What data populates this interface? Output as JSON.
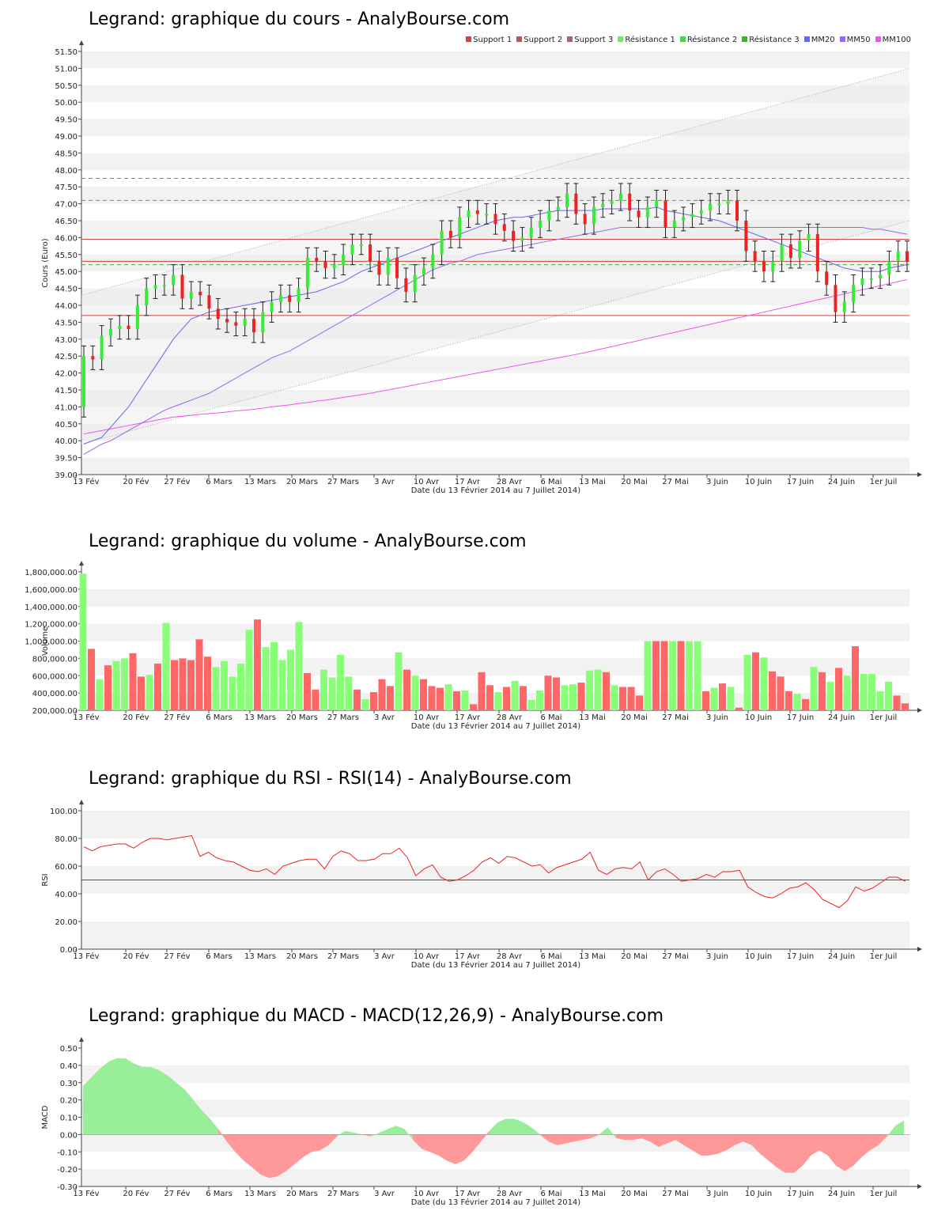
{
  "x_ticks": [
    "13 Fév",
    "20 Fév",
    "27 Fév",
    "6 Mars",
    "13 Mars",
    "20 Mars",
    "27 Mars",
    "3 Avr",
    "10 Avr",
    "17 Avr",
    "28 Avr",
    "6 Mai",
    "13 Mai",
    "20 Mai",
    "27 Mai",
    "3 Juin",
    "10 Juin",
    "17 Juin",
    "24 Juin",
    "1er Juil"
  ],
  "xlabel": "Date (du 13 Février 2014 au 7 Juillet 2014)",
  "colors": {
    "up": "#33ee33",
    "down": "#ee2222",
    "vol_up": "#88ff77",
    "vol_down": "#ff6666",
    "mm20": "#6666ee",
    "mm50": "#9966ee",
    "mm100": "#ee55ee",
    "support": "#cc4444",
    "resistance": "#44aa44",
    "grid_band": "#f2f2f2",
    "macd_pos": "#99ee99",
    "macd_neg": "#ff9999"
  },
  "chart_data": [
    {
      "type": "candlestick",
      "title": "Legrand: graphique du cours - AnalyBourse.com",
      "ylabel": "Cours (Euro)",
      "ylim": [
        39.0,
        51.5
      ],
      "y_ticks": [
        "39.00",
        "39.50",
        "40.00",
        "40.50",
        "41.00",
        "41.50",
        "42.00",
        "42.50",
        "43.00",
        "43.50",
        "44.00",
        "44.50",
        "45.00",
        "45.50",
        "46.00",
        "46.50",
        "47.00",
        "47.50",
        "48.00",
        "48.50",
        "49.00",
        "49.50",
        "50.00",
        "50.50",
        "51.00",
        "51.50"
      ],
      "legend": [
        "Support 1",
        "Support 2",
        "Support 3",
        "Résistance 1",
        "Résistance 2",
        "Résistance 3",
        "MM20",
        "MM50",
        "MM100"
      ],
      "support_levels": [
        43.7,
        45.95,
        45.3
      ],
      "resistance_levels": [
        47.75,
        47.1,
        45.2
      ],
      "closes": [
        42.5,
        42.4,
        43.1,
        43.3,
        43.4,
        43.3,
        44.0,
        44.5,
        44.6,
        44.6,
        44.9,
        44.2,
        44.4,
        44.3,
        43.9,
        43.6,
        43.5,
        43.4,
        43.6,
        43.2,
        43.8,
        44.1,
        44.3,
        44.1,
        44.5,
        45.4,
        45.3,
        45.1,
        45.2,
        45.5,
        45.8,
        45.8,
        45.3,
        44.9,
        45.4,
        44.8,
        44.4,
        44.9,
        45.1,
        45.5,
        46.2,
        46.0,
        46.6,
        46.8,
        46.7,
        46.7,
        46.4,
        46.2,
        45.9,
        46.0,
        46.3,
        46.5,
        46.8,
        46.9,
        47.3,
        46.7,
        46.4,
        46.9,
        47.0,
        47.1,
        47.3,
        46.8,
        46.6,
        46.9,
        47.1,
        46.3,
        46.5,
        46.6,
        46.7,
        46.8,
        47.0,
        47.0,
        47.1,
        46.5,
        45.6,
        45.3,
        45.0,
        45.3,
        45.8,
        45.4,
        45.9,
        46.1,
        45.0,
        44.6,
        43.8,
        44.1,
        44.6,
        44.8,
        44.8,
        44.9,
        45.3,
        45.6,
        45.3
      ],
      "mm20": [
        39.9,
        40.0,
        40.1,
        40.4,
        40.7,
        41.0,
        41.4,
        41.8,
        42.2,
        42.6,
        43.0,
        43.3,
        43.6,
        43.7,
        43.8,
        43.85,
        43.9,
        43.95,
        44.0,
        44.05,
        44.1,
        44.15,
        44.2,
        44.25,
        44.3,
        44.35,
        44.4,
        44.5,
        44.6,
        44.7,
        44.85,
        45.0,
        45.1,
        45.2,
        45.3,
        45.4,
        45.5,
        45.6,
        45.7,
        45.8,
        45.9,
        46.0,
        46.1,
        46.2,
        46.3,
        46.4,
        46.5,
        46.55,
        46.6,
        46.6,
        46.65,
        46.7,
        46.75,
        46.8,
        46.8,
        46.8,
        46.8,
        46.8,
        46.85,
        46.85,
        46.85,
        46.85,
        46.85,
        46.85,
        46.9,
        46.8,
        46.75,
        46.7,
        46.65,
        46.6,
        46.55,
        46.5,
        46.4,
        46.3,
        46.2,
        46.1,
        46.0,
        45.9,
        45.8,
        45.7,
        45.6,
        45.5,
        45.4,
        45.3,
        45.2,
        45.1,
        45.05,
        45.0,
        45.0,
        45.0,
        45.1,
        45.15,
        45.2
      ],
      "mm50": [
        39.6,
        39.75,
        39.9,
        40.0,
        40.15,
        40.3,
        40.45,
        40.6,
        40.75,
        40.9,
        41.0,
        41.1,
        41.2,
        41.3,
        41.4,
        41.55,
        41.7,
        41.85,
        42.0,
        42.15,
        42.3,
        42.45,
        42.55,
        42.65,
        42.8,
        42.95,
        43.1,
        43.25,
        43.4,
        43.55,
        43.7,
        43.85,
        44.0,
        44.15,
        44.3,
        44.45,
        44.6,
        44.75,
        44.9,
        45.05,
        45.15,
        45.25,
        45.3,
        45.4,
        45.5,
        45.55,
        45.6,
        45.65,
        45.7,
        45.75,
        45.8,
        45.85,
        45.9,
        45.95,
        46.0,
        46.05,
        46.1,
        46.15,
        46.2,
        46.25,
        46.3,
        46.3,
        46.3,
        46.3,
        46.3,
        46.3,
        46.3,
        46.3,
        46.3,
        46.3,
        46.3,
        46.3,
        46.3,
        46.3,
        46.3,
        46.3,
        46.3,
        46.3,
        46.3,
        46.3,
        46.3,
        46.3,
        46.3,
        46.3,
        46.3,
        46.3,
        46.3,
        46.3,
        46.25,
        46.25,
        46.2,
        46.15,
        46.1
      ],
      "mm100": [
        40.2,
        40.25,
        40.3,
        40.35,
        40.4,
        40.45,
        40.5,
        40.55,
        40.6,
        40.65,
        40.7,
        40.72,
        40.75,
        40.78,
        40.8,
        40.82,
        40.85,
        40.88,
        40.9,
        40.93,
        40.96,
        41.0,
        41.03,
        41.06,
        41.1,
        41.13,
        41.17,
        41.2,
        41.24,
        41.28,
        41.32,
        41.36,
        41.4,
        41.45,
        41.5,
        41.55,
        41.6,
        41.65,
        41.7,
        41.75,
        41.8,
        41.85,
        41.9,
        41.95,
        42.0,
        42.05,
        42.1,
        42.15,
        42.2,
        42.25,
        42.3,
        42.35,
        42.4,
        42.45,
        42.5,
        42.55,
        42.6,
        42.66,
        42.72,
        42.78,
        42.84,
        42.9,
        42.96,
        43.02,
        43.08,
        43.14,
        43.2,
        43.26,
        43.32,
        43.38,
        43.44,
        43.5,
        43.56,
        43.62,
        43.68,
        43.74,
        43.8,
        43.86,
        43.92,
        43.98,
        44.04,
        44.1,
        44.16,
        44.22,
        44.28,
        44.34,
        44.4,
        44.46,
        44.52,
        44.58,
        44.64,
        44.7,
        44.76
      ]
    },
    {
      "type": "bar",
      "title": "Legrand: graphique du volume - AnalyBourse.com",
      "ylabel": "Volume",
      "ylim": [
        200000,
        1800000
      ],
      "y_ticks": [
        "200,000.00",
        "400,000.00",
        "600,000.00",
        "800,000.00",
        "1,000,000.00",
        "1,200,000.00",
        "1,400,000.00",
        "1,600,000.00",
        "1,800,000.00"
      ],
      "values": [
        1780000,
        910000,
        560000,
        720000,
        770000,
        800000,
        860000,
        590000,
        610000,
        740000,
        1210000,
        780000,
        800000,
        780000,
        1020000,
        820000,
        700000,
        770000,
        590000,
        740000,
        1130000,
        1250000,
        930000,
        990000,
        780000,
        900000,
        1220000,
        630000,
        440000,
        670000,
        580000,
        840000,
        590000,
        440000,
        330000,
        410000,
        560000,
        480000,
        870000,
        670000,
        600000,
        560000,
        480000,
        460000,
        500000,
        420000,
        430000,
        270000,
        640000,
        490000,
        410000,
        470000,
        540000,
        480000,
        320000,
        430000,
        600000,
        580000,
        490000,
        500000,
        520000,
        660000,
        670000,
        640000,
        490000,
        470000,
        470000,
        370000,
        1000000,
        1000000,
        1000000,
        1000000,
        1000000,
        1000000,
        1000000,
        420000,
        460000,
        510000,
        470000,
        230000,
        840000,
        870000,
        810000,
        650000,
        590000,
        420000,
        390000,
        330000,
        700000,
        640000,
        530000,
        690000,
        600000,
        940000,
        620000,
        620000,
        420000,
        530000,
        370000,
        280000
      ]
    },
    {
      "type": "line",
      "title": "Legrand: graphique du RSI - RSI(14) - AnalyBourse.com",
      "ylabel": "RSI",
      "ylim": [
        0,
        100
      ],
      "y_ticks": [
        "0.00",
        "20.00",
        "40.00",
        "60.00",
        "80.00",
        "100.00"
      ],
      "reference_level": 50,
      "values": [
        74,
        71,
        74,
        75,
        76,
        76,
        73,
        77,
        80,
        80,
        79,
        80,
        81,
        82,
        67,
        70,
        66,
        64,
        63,
        60,
        57,
        56,
        58,
        54,
        60,
        62,
        64,
        65,
        65,
        58,
        67,
        71,
        69,
        64,
        64,
        65,
        69,
        69,
        73,
        66,
        53,
        58,
        61,
        52,
        49,
        50,
        53,
        57,
        63,
        66,
        62,
        67,
        66,
        63,
        60,
        61,
        55,
        59,
        61,
        63,
        65,
        70,
        57,
        54,
        58,
        59,
        58,
        63,
        50,
        56,
        58,
        54,
        49,
        50,
        51,
        54,
        52,
        56,
        56,
        57,
        45,
        41,
        38,
        37,
        40,
        44,
        45,
        48,
        43,
        36,
        33,
        30,
        35,
        45,
        42,
        44,
        48,
        52,
        52,
        49
      ]
    },
    {
      "type": "area",
      "title": "Legrand: graphique du MACD - MACD(12,26,9) - AnalyBourse.com",
      "ylabel": "MACD",
      "ylim": [
        -0.3,
        0.5
      ],
      "y_ticks": [
        "-0.30",
        "-0.20",
        "-0.10",
        "0.00",
        "0.10",
        "0.20",
        "0.30",
        "0.40",
        "0.50"
      ],
      "values": [
        0.28,
        0.33,
        0.38,
        0.42,
        0.44,
        0.44,
        0.41,
        0.39,
        0.39,
        0.37,
        0.34,
        0.3,
        0.26,
        0.2,
        0.14,
        0.09,
        0.03,
        -0.04,
        -0.1,
        -0.15,
        -0.19,
        -0.23,
        -0.25,
        -0.24,
        -0.21,
        -0.17,
        -0.13,
        -0.1,
        -0.09,
        -0.06,
        -0.01,
        0.02,
        0.01,
        0.0,
        -0.01,
        0.01,
        0.03,
        0.05,
        0.03,
        -0.03,
        -0.08,
        -0.1,
        -0.12,
        -0.15,
        -0.17,
        -0.15,
        -0.1,
        -0.04,
        0.02,
        0.07,
        0.09,
        0.09,
        0.07,
        0.04,
        0.0,
        -0.04,
        -0.06,
        -0.05,
        -0.04,
        -0.03,
        -0.02,
        0.0,
        0.04,
        -0.02,
        -0.03,
        -0.03,
        -0.02,
        -0.04,
        -0.07,
        -0.05,
        -0.03,
        -0.06,
        -0.09,
        -0.12,
        -0.12,
        -0.11,
        -0.09,
        -0.06,
        -0.04,
        -0.06,
        -0.11,
        -0.15,
        -0.19,
        -0.22,
        -0.22,
        -0.18,
        -0.12,
        -0.09,
        -0.12,
        -0.18,
        -0.21,
        -0.18,
        -0.13,
        -0.09,
        -0.06,
        -0.01,
        0.05,
        0.08
      ]
    }
  ]
}
